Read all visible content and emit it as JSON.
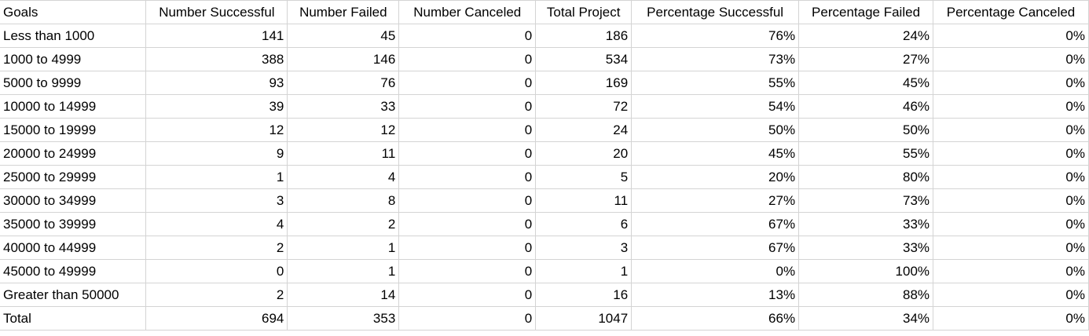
{
  "sheet": {
    "headers": [
      "Goals",
      "Number Successful",
      "Number Failed",
      "Number Canceled",
      "Total Project",
      "Percentage Successful",
      "Percentage Failed",
      "Percentage Canceled"
    ],
    "rows": [
      [
        "Less than 1000",
        "141",
        "45",
        "0",
        "186",
        "76%",
        "24%",
        "0%"
      ],
      [
        "1000 to 4999",
        "388",
        "146",
        "0",
        "534",
        "73%",
        "27%",
        "0%"
      ],
      [
        "5000 to 9999",
        "93",
        "76",
        "0",
        "169",
        "55%",
        "45%",
        "0%"
      ],
      [
        "10000 to 14999",
        "39",
        "33",
        "0",
        "72",
        "54%",
        "46%",
        "0%"
      ],
      [
        "15000 to 19999",
        "12",
        "12",
        "0",
        "24",
        "50%",
        "50%",
        "0%"
      ],
      [
        "20000 to 24999",
        "9",
        "11",
        "0",
        "20",
        "45%",
        "55%",
        "0%"
      ],
      [
        "25000 to 29999",
        "1",
        "4",
        "0",
        "5",
        "20%",
        "80%",
        "0%"
      ],
      [
        "30000 to 34999",
        "3",
        "8",
        "0",
        "11",
        "27%",
        "73%",
        "0%"
      ],
      [
        "35000 to 39999",
        "4",
        "2",
        "0",
        "6",
        "67%",
        "33%",
        "0%"
      ],
      [
        "40000 to 44999",
        "2",
        "1",
        "0",
        "3",
        "67%",
        "33%",
        "0%"
      ],
      [
        "45000 to 49999",
        "0",
        "1",
        "0",
        "1",
        "0%",
        "100%",
        "0%"
      ],
      [
        "Greater than 50000",
        "2",
        "14",
        "0",
        "16",
        "13%",
        "88%",
        "0%"
      ],
      [
        "Total",
        "694",
        "353",
        "0",
        "1047",
        "66%",
        "34%",
        "0%"
      ]
    ]
  },
  "colors": {
    "gridline": "#d4d4d4",
    "text": "#000000",
    "background": "#ffffff"
  }
}
